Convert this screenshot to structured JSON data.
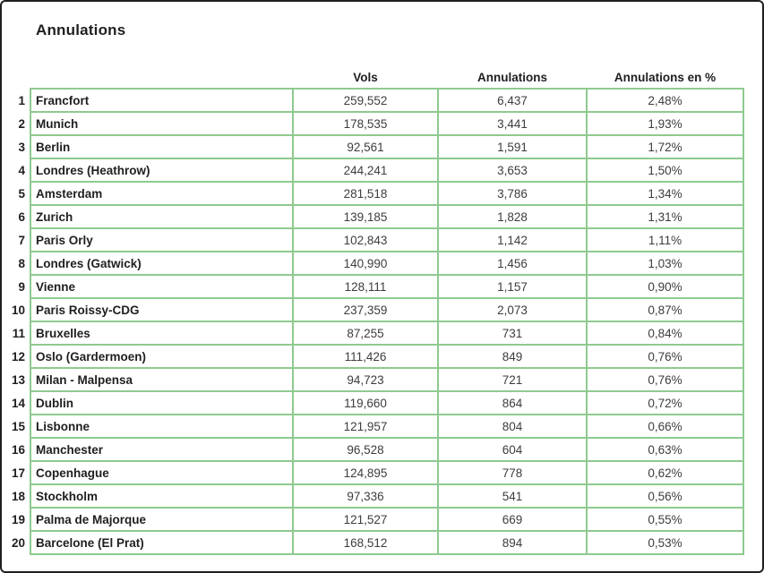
{
  "title": "Annulations",
  "colors": {
    "grid_border": "#8fca8f",
    "frame": "#1f1f1f",
    "text": "#1f1f1f",
    "number_text": "#3d3d3d"
  },
  "chart_data": {
    "type": "table",
    "title": "Annulations",
    "legend_position": "none",
    "grid": "green cell borders, white background",
    "columns": {
      "rank": "",
      "name": "",
      "vols": "Vols",
      "annulations": "Annulations",
      "pct": "Annulations en %"
    },
    "rows": [
      {
        "rank": "1",
        "name": "Francfort",
        "vols": "259,552",
        "annulations": "6,437",
        "pct": "2,48%"
      },
      {
        "rank": "2",
        "name": "Munich",
        "vols": "178,535",
        "annulations": "3,441",
        "pct": "1,93%"
      },
      {
        "rank": "3",
        "name": "Berlin",
        "vols": "92,561",
        "annulations": "1,591",
        "pct": "1,72%"
      },
      {
        "rank": "4",
        "name": "Londres (Heathrow)",
        "vols": "244,241",
        "annulations": "3,653",
        "pct": "1,50%"
      },
      {
        "rank": "5",
        "name": "Amsterdam",
        "vols": "281,518",
        "annulations": "3,786",
        "pct": "1,34%"
      },
      {
        "rank": "6",
        "name": "Zurich",
        "vols": "139,185",
        "annulations": "1,828",
        "pct": "1,31%"
      },
      {
        "rank": "7",
        "name": "Paris Orly",
        "vols": "102,843",
        "annulations": "1,142",
        "pct": "1,11%"
      },
      {
        "rank": "8",
        "name": "Londres (Gatwick)",
        "vols": "140,990",
        "annulations": "1,456",
        "pct": "1,03%"
      },
      {
        "rank": "9",
        "name": "Vienne",
        "vols": "128,111",
        "annulations": "1,157",
        "pct": "0,90%"
      },
      {
        "rank": "10",
        "name": "Paris Roissy-CDG",
        "vols": "237,359",
        "annulations": "2,073",
        "pct": "0,87%"
      },
      {
        "rank": "11",
        "name": "Bruxelles",
        "vols": "87,255",
        "annulations": "731",
        "pct": "0,84%"
      },
      {
        "rank": "12",
        "name": "Oslo (Gardermoen)",
        "vols": "111,426",
        "annulations": "849",
        "pct": "0,76%"
      },
      {
        "rank": "13",
        "name": "Milan - Malpensa",
        "vols": "94,723",
        "annulations": "721",
        "pct": "0,76%"
      },
      {
        "rank": "14",
        "name": "Dublin",
        "vols": "119,660",
        "annulations": "864",
        "pct": "0,72%"
      },
      {
        "rank": "15",
        "name": "Lisbonne",
        "vols": "121,957",
        "annulations": "804",
        "pct": "0,66%"
      },
      {
        "rank": "16",
        "name": "Manchester",
        "vols": "96,528",
        "annulations": "604",
        "pct": "0,63%"
      },
      {
        "rank": "17",
        "name": "Copenhague",
        "vols": "124,895",
        "annulations": "778",
        "pct": "0,62%"
      },
      {
        "rank": "18",
        "name": "Stockholm",
        "vols": "97,336",
        "annulations": "541",
        "pct": "0,56%"
      },
      {
        "rank": "19",
        "name": "Palma de Majorque",
        "vols": "121,527",
        "annulations": "669",
        "pct": "0,55%"
      },
      {
        "rank": "20",
        "name": "Barcelone (El Prat)",
        "vols": "168,512",
        "annulations": "894",
        "pct": "0,53%"
      }
    ]
  }
}
